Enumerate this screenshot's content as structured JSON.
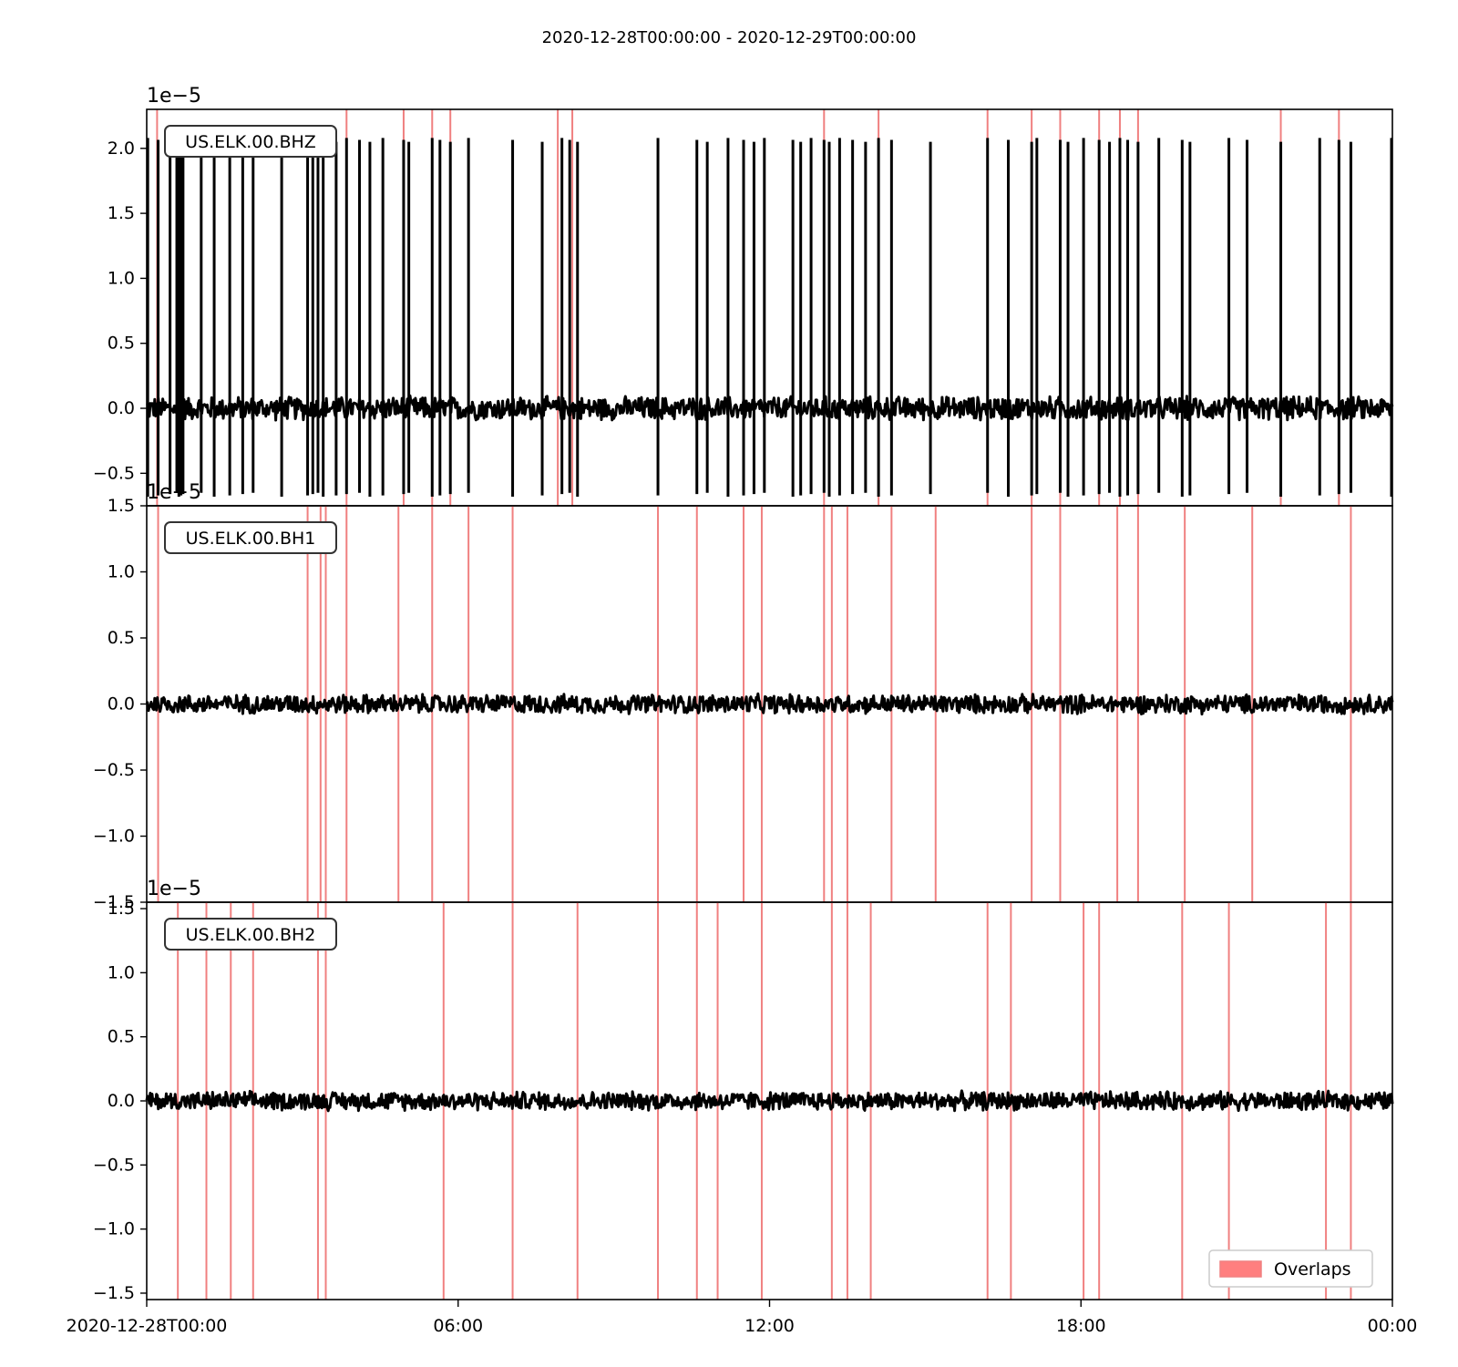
{
  "chart_data": {
    "type": "line",
    "title": "2020-12-28T00:00:00  -  2020-12-29T00:00:00",
    "x_ticks": [
      {
        "hour": 0,
        "label": "2020-12-28T00:00"
      },
      {
        "hour": 6,
        "label": "06:00"
      },
      {
        "hour": 12,
        "label": "12:00"
      },
      {
        "hour": 18,
        "label": "18:00"
      },
      {
        "hour": 24,
        "label": "00:00"
      }
    ],
    "xlim_hours": [
      0,
      24
    ],
    "y_ticks": [
      "2.0",
      "1.5",
      "1.0",
      "0.5",
      "0.0",
      "−0.5",
      "−1.0",
      "−1.5"
    ],
    "y_tick_values": [
      2.0,
      1.5,
      1.0,
      0.5,
      0.0,
      -0.5,
      -1.0,
      -1.5
    ],
    "offset_label": "1e−5",
    "legend": {
      "label": "Overlaps",
      "color": "#ff7f7f",
      "placement": "lower right"
    },
    "trace_color": "#000000",
    "overlap_color": "#f08080",
    "panels": [
      {
        "label": "US.ELK.00.BHZ",
        "ylim": [
          -0.75,
          2.3
        ],
        "noise_amp": 0.1,
        "spike_top": 2.08,
        "spike_bottom": -0.68,
        "overlap_hours": [
          0.2,
          3.85,
          4.95,
          5.5,
          5.85,
          7.92,
          8.2,
          13.05,
          14.1,
          16.2,
          17.05,
          17.6,
          18.35,
          18.75,
          19.1,
          21.85,
          22.97
        ],
        "spike_hours": [
          0.02,
          0.22,
          0.45,
          0.58,
          0.62,
          0.66,
          0.7,
          1.05,
          1.3,
          1.6,
          1.85,
          2.05,
          2.6,
          3.1,
          3.2,
          3.3,
          3.4,
          3.65,
          3.85,
          4.1,
          4.3,
          4.55,
          4.95,
          5.05,
          5.5,
          5.65,
          5.85,
          6.2,
          7.05,
          7.62,
          8.0,
          8.15,
          8.3,
          9.85,
          10.6,
          10.8,
          11.2,
          11.5,
          11.7,
          11.9,
          12.45,
          12.6,
          12.8,
          13.05,
          13.15,
          13.35,
          13.6,
          13.85,
          14.1,
          14.35,
          15.1,
          16.2,
          16.6,
          17.05,
          17.15,
          17.6,
          17.75,
          18.05,
          18.35,
          18.55,
          18.75,
          18.9,
          19.1,
          19.5,
          19.95,
          20.1,
          20.85,
          21.2,
          21.85,
          22.6,
          22.97,
          23.2,
          24.0
        ]
      },
      {
        "label": "US.ELK.00.BH1",
        "ylim": [
          -1.5,
          1.5
        ],
        "noise_amp": 0.08,
        "spike_top": null,
        "spike_bottom": null,
        "overlap_hours": [
          0.22,
          3.1,
          3.35,
          3.45,
          3.85,
          4.85,
          5.5,
          6.2,
          7.05,
          9.85,
          10.6,
          11.5,
          11.85,
          13.05,
          13.2,
          13.5,
          14.35,
          15.2,
          17.05,
          17.6,
          18.7,
          19.1,
          20.0,
          21.3,
          23.2
        ]
      },
      {
        "label": "US.ELK.00.BH2",
        "ylim": [
          -1.55,
          1.55
        ],
        "noise_amp": 0.08,
        "spike_top": null,
        "spike_bottom": null,
        "overlap_hours": [
          0.6,
          1.15,
          1.62,
          2.05,
          3.3,
          3.45,
          5.72,
          7.05,
          8.3,
          9.85,
          10.6,
          11.0,
          11.85,
          13.2,
          13.5,
          13.95,
          16.2,
          16.65,
          18.05,
          18.35,
          19.95,
          20.85,
          22.72,
          23.2
        ]
      }
    ]
  }
}
